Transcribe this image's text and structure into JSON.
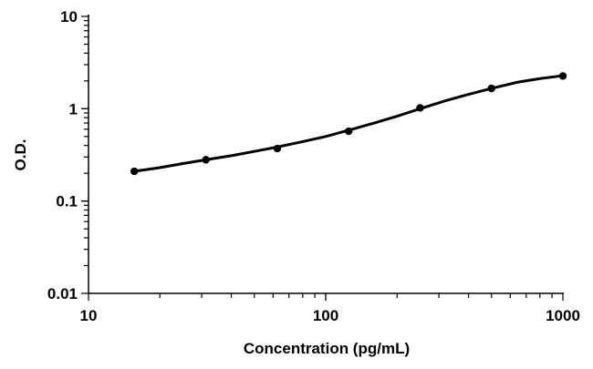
{
  "chart_data": {
    "type": "scatter",
    "title": "",
    "xlabel": "Concentration (pg/mL)",
    "ylabel": "O.D.",
    "x_scale": "log",
    "y_scale": "log",
    "xlim": [
      10,
      1000
    ],
    "ylim": [
      0.01,
      10
    ],
    "x_ticks": [
      10,
      100,
      1000
    ],
    "x_tick_labels": [
      "10",
      "100",
      "1000"
    ],
    "y_ticks": [
      0.01,
      0.1,
      1,
      10
    ],
    "y_tick_labels": [
      "0.01",
      "0.1",
      "1",
      "10"
    ],
    "grid": false,
    "legend": "none",
    "series": [
      {
        "x": [
          15.6,
          31.25,
          62.5,
          125,
          250,
          500,
          1000
        ],
        "y": [
          0.21,
          0.28,
          0.37,
          0.57,
          1.02,
          1.66,
          2.26
        ]
      }
    ],
    "fit_curve": {
      "x": [
        15.6,
        20,
        25,
        31.25,
        40,
        50,
        62.5,
        80,
        100,
        125,
        160,
        200,
        250,
        320,
        400,
        500,
        640,
        800,
        1000
      ],
      "y": [
        0.21,
        0.23,
        0.255,
        0.28,
        0.31,
        0.345,
        0.385,
        0.44,
        0.5,
        0.585,
        0.7,
        0.83,
        1.0,
        1.22,
        1.43,
        1.66,
        1.93,
        2.12,
        2.28
      ]
    },
    "colors": {
      "marker": "#000000",
      "line": "#000000",
      "axis": "#000000"
    }
  }
}
